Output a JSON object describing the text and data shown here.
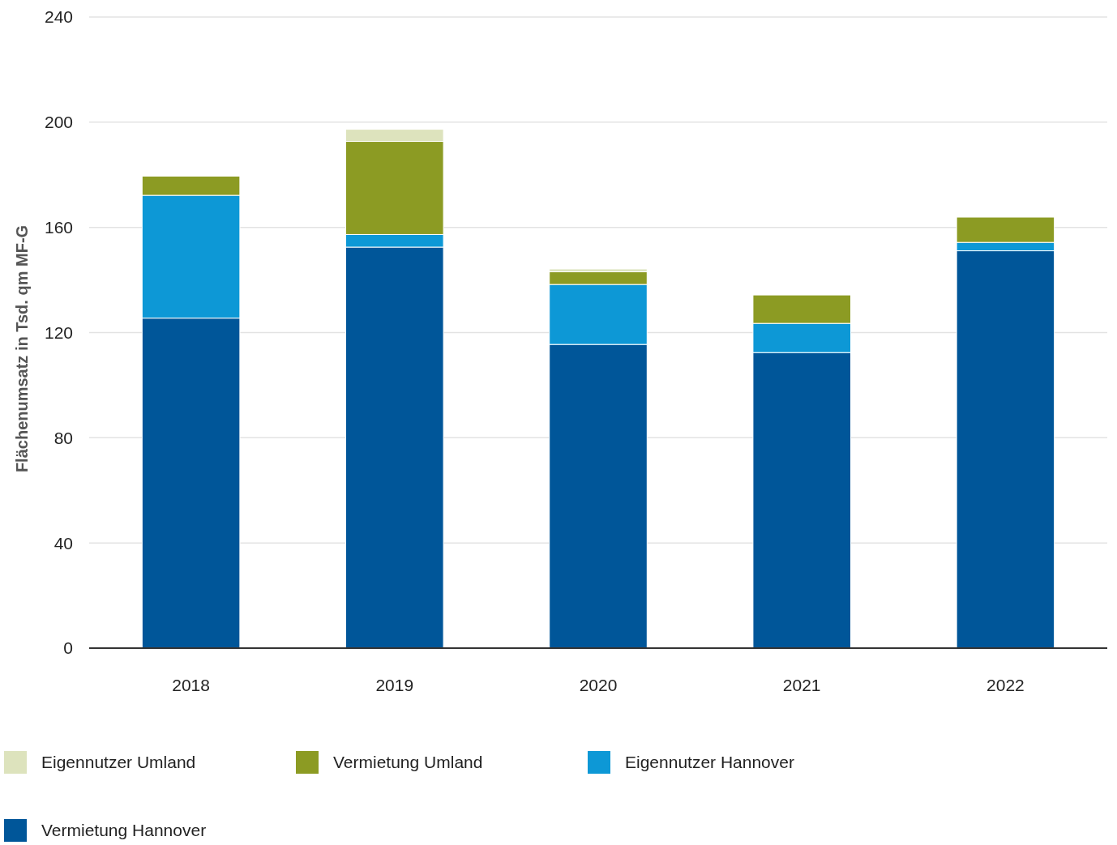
{
  "chart_data": {
    "type": "bar",
    "ylabel": "Flächenumsatz in Tsd. qm MF-G",
    "categories": [
      "2018",
      "2019",
      "2020",
      "2021",
      "2022"
    ],
    "stacked": true,
    "ylim": [
      0,
      240
    ],
    "yticks": [
      0,
      40,
      80,
      120,
      160,
      200,
      240
    ],
    "grid": "y",
    "legend": "bottom left",
    "series": [
      {
        "name": "Vermietung Hannover",
        "color": "#005699",
        "values": [
          125.5,
          152.5,
          115.5,
          112.4,
          151.1
        ]
      },
      {
        "name": "Eigennutzer Hannover",
        "color": "#0d98d6",
        "values": [
          46.7,
          4.8,
          22.8,
          11.1,
          3.2
        ]
      },
      {
        "name": "Vermietung Umland",
        "color": "#8c9b23",
        "values": [
          7.3,
          35.4,
          4.8,
          10.8,
          9.6
        ]
      },
      {
        "name": "Eigennutzer Umland",
        "color": "#dde3bd",
        "values": [
          0,
          4.6,
          1.1,
          0,
          0
        ]
      }
    ]
  }
}
